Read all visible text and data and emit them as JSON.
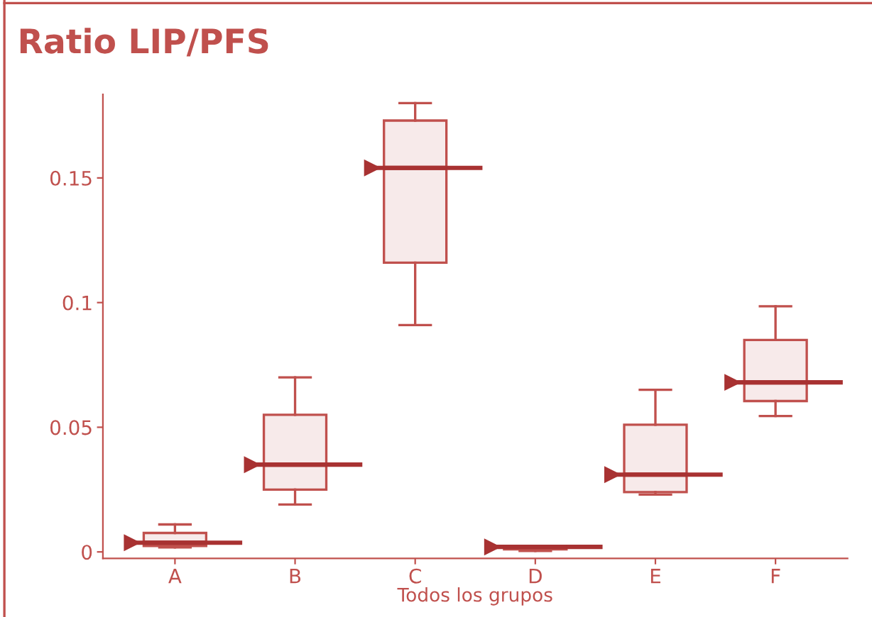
{
  "chart_data": {
    "type": "box",
    "title": "Ratio LIP/PFS",
    "xlabel": "Todos los grupos",
    "categories": [
      "A",
      "B",
      "C",
      "D",
      "E",
      "F"
    ],
    "boxes": [
      {
        "low": 0.0018,
        "q1": 0.0024,
        "median": 0.0037,
        "q3": 0.0076,
        "high": 0.011
      },
      {
        "low": 0.019,
        "q1": 0.025,
        "median": 0.035,
        "q3": 0.055,
        "high": 0.07
      },
      {
        "low": 0.091,
        "q1": 0.116,
        "median": 0.154,
        "q3": 0.173,
        "high": 0.18
      },
      {
        "low": 0.0004,
        "q1": 0.001,
        "median": 0.002,
        "q3": 0.002,
        "high": 0.002
      },
      {
        "low": 0.023,
        "q1": 0.024,
        "median": 0.031,
        "q3": 0.051,
        "high": 0.065
      },
      {
        "low": 0.0545,
        "q1": 0.0605,
        "median": 0.068,
        "q3": 0.085,
        "high": 0.0985
      }
    ],
    "color": "#c0504d",
    "ylim": [
      -0.0026,
      0.1835
    ],
    "yticks": [
      0,
      0.05,
      0.1,
      0.15
    ],
    "grid": false
  }
}
